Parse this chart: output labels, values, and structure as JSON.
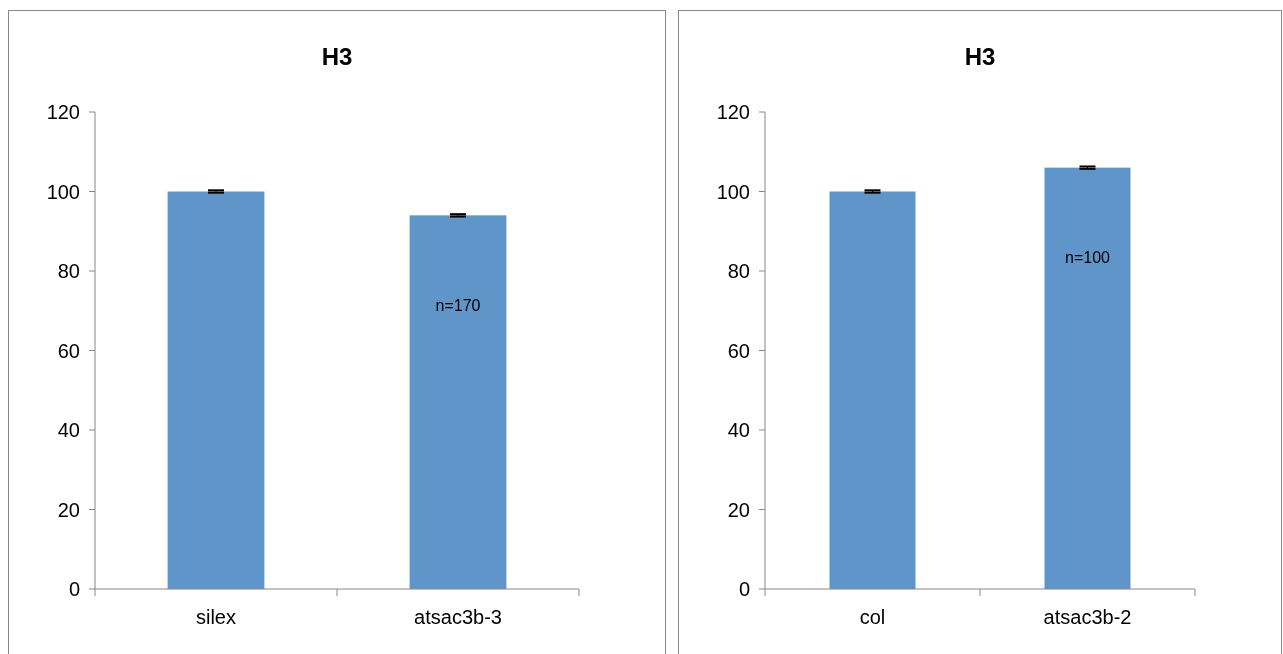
{
  "chart_data": [
    {
      "type": "bar",
      "title": "H3",
      "categories": [
        "silex",
        "atsac3b-3"
      ],
      "values": [
        100,
        94
      ],
      "errors": [
        0.3,
        0.3
      ],
      "color": "#5f95c9",
      "ylim": [
        0,
        120
      ],
      "yticks": [
        0,
        20,
        40,
        60,
        80,
        100,
        120
      ],
      "grid": false,
      "annotations": [
        "n=170"
      ]
    },
    {
      "type": "bar",
      "title": "H3",
      "categories": [
        "col",
        "atsac3b-2"
      ],
      "values": [
        100,
        106
      ],
      "errors": [
        0.3,
        0.3
      ],
      "color": "#5f95c9",
      "ylim": [
        0,
        120
      ],
      "yticks": [
        0,
        20,
        40,
        60,
        80,
        100,
        120
      ],
      "grid": false,
      "annotations": [
        "n=100"
      ]
    }
  ]
}
